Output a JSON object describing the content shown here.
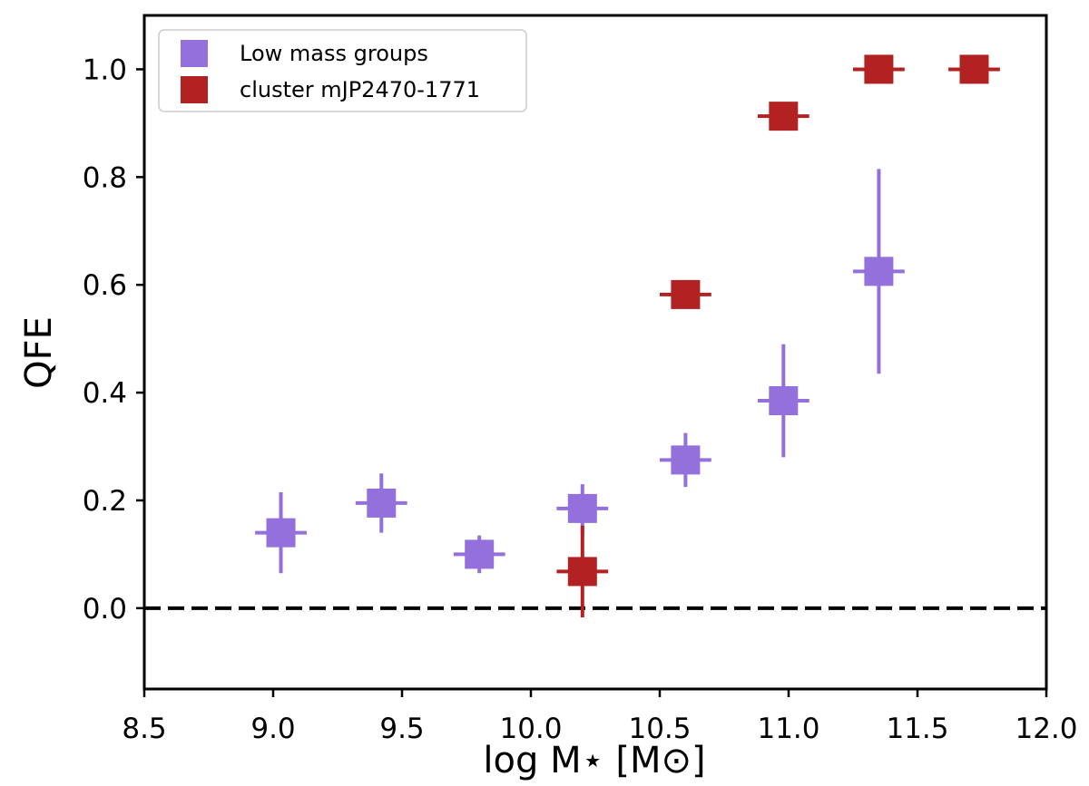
{
  "chart_data": {
    "type": "scatter",
    "title": "",
    "xlabel": "log M⋆ [M⊙]",
    "ylabel": "QFE",
    "xlim": [
      8.5,
      12.0
    ],
    "ylim": [
      -0.15,
      1.1
    ],
    "xticks": [
      8.5,
      9.0,
      9.5,
      10.0,
      10.5,
      11.0,
      11.5,
      12.0
    ],
    "xtick_labels": [
      "8.5",
      "9.0",
      "9.5",
      "10.0",
      "10.5",
      "11.0",
      "11.5",
      "12.0"
    ],
    "yticks": [
      0.0,
      0.2,
      0.4,
      0.6,
      0.8,
      1.0
    ],
    "ytick_labels": [
      "0.0",
      "0.2",
      "0.4",
      "0.6",
      "0.8",
      "1.0"
    ],
    "grid": false,
    "legend_position": "top-left",
    "reference_line": {
      "y": 0.0,
      "style": "dashed",
      "color": "#000000"
    },
    "series": [
      {
        "name": "Low mass groups",
        "color": "#9370DB",
        "points": [
          {
            "x": 9.03,
            "y": 0.14,
            "xerr": 0.1,
            "yerr_low": 0.075,
            "yerr_high": 0.075
          },
          {
            "x": 9.42,
            "y": 0.195,
            "xerr": 0.1,
            "yerr_low": 0.055,
            "yerr_high": 0.055
          },
          {
            "x": 9.8,
            "y": 0.1,
            "xerr": 0.1,
            "yerr_low": 0.035,
            "yerr_high": 0.035
          },
          {
            "x": 10.2,
            "y": 0.185,
            "xerr": 0.1,
            "yerr_low": 0.045,
            "yerr_high": 0.045
          },
          {
            "x": 10.6,
            "y": 0.275,
            "xerr": 0.1,
            "yerr_low": 0.05,
            "yerr_high": 0.05
          },
          {
            "x": 10.98,
            "y": 0.385,
            "xerr": 0.1,
            "yerr_low": 0.105,
            "yerr_high": 0.105
          },
          {
            "x": 11.35,
            "y": 0.625,
            "xerr": 0.1,
            "yerr_low": 0.19,
            "yerr_high": 0.19
          }
        ]
      },
      {
        "name": "cluster mJP2470-1771",
        "color": "#B22222",
        "points": [
          {
            "x": 10.2,
            "y": 0.068,
            "xerr": 0.1,
            "yerr_low": 0.085,
            "yerr_high": 0.085
          },
          {
            "x": 10.6,
            "y": 0.582,
            "xerr": 0.1,
            "yerr_low": 0.0,
            "yerr_high": 0.0
          },
          {
            "x": 10.98,
            "y": 0.913,
            "xerr": 0.1,
            "yerr_low": 0.0,
            "yerr_high": 0.0
          },
          {
            "x": 11.35,
            "y": 1.0,
            "xerr": 0.1,
            "yerr_low": 0.0,
            "yerr_high": 0.0
          },
          {
            "x": 11.72,
            "y": 1.0,
            "xerr": 0.1,
            "yerr_low": 0.0,
            "yerr_high": 0.0
          }
        ]
      }
    ]
  }
}
